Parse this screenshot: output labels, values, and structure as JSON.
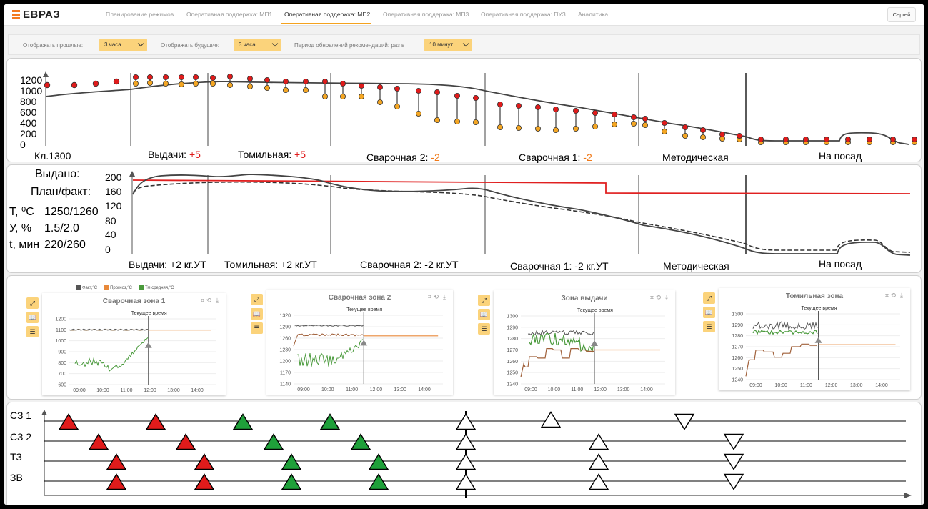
{
  "header": {
    "logo": "ЕВРАЗ",
    "tabs": [
      {
        "label": "Планирование режимов",
        "active": false
      },
      {
        "label": "Оперативная поддержка: МП1",
        "active": false
      },
      {
        "label": "Оперативная поддержка: МП2",
        "active": true
      },
      {
        "label": "Оперативная поддержка: МП3",
        "active": false
      },
      {
        "label": "Оперативная поддержка: ПУЗ",
        "active": false
      },
      {
        "label": "Аналитика",
        "active": false
      }
    ],
    "user": "Сергей"
  },
  "filters": {
    "past_label": "Отображать прошлые:",
    "past_value": "3 часа",
    "future_label": "Отображать будущие:",
    "future_value": "3 часа",
    "period_label": "Период обновлений рекомендаций: раз в",
    "period_value": "10 минут"
  },
  "colors": {
    "accent": "#f47b20",
    "select_bg": "#fbd37b",
    "red": "#e01b1b",
    "orange": "#f4a623",
    "green": "#1fa03a",
    "plan_red": "#e02020",
    "fact": "#555555",
    "forecast": "#e8893a",
    "avg": "#4a9a3c"
  },
  "zone_chart": {
    "y_ticks": [
      "1200",
      "1000",
      "800",
      "600",
      "400",
      "200",
      "0"
    ],
    "zones": [
      {
        "name": "Кл.1300",
        "delta": ""
      },
      {
        "name": "Выдачи:",
        "delta": "+5"
      },
      {
        "name": "Томильная:",
        "delta": "+5"
      },
      {
        "name": "Сварочная 2:",
        "delta": "-2"
      },
      {
        "name": "Сварочная 1:",
        "delta": "-2"
      },
      {
        "name": "Методическая",
        "delta": ""
      },
      {
        "name": "На посад",
        "delta": ""
      }
    ]
  },
  "production_chart": {
    "issued_label": "Выдано:",
    "plan_fact_label": "План/факт:",
    "info": [
      {
        "param": "T, ⁰C",
        "value": "1250/1260"
      },
      {
        "param": "У, %",
        "value": "1.5/2.0"
      },
      {
        "param": "t, мин",
        "value": "220/260"
      }
    ],
    "y_ticks": [
      "200",
      "160",
      "120",
      "80",
      "40",
      "0"
    ],
    "zones": [
      {
        "name": "Выдачи:",
        "delta": "+2 кг.УТ"
      },
      {
        "name": "Томильная:",
        "delta": "+2 кг.УТ"
      },
      {
        "name": "Сварочная 2:",
        "delta": "-2 кг.УТ"
      },
      {
        "name": "Сварочная 1:",
        "delta": "-2 кг.УТ"
      },
      {
        "name": "Методическая",
        "delta": ""
      },
      {
        "name": "На посад",
        "delta": ""
      }
    ]
  },
  "mini_legend": {
    "fact": "Факт,°C",
    "forecast": "Прогноз,°C",
    "avg": "Тм средняя,°C"
  },
  "mini_charts": [
    {
      "title": "Сварочная зона 1",
      "current": "Текущее время",
      "y_ticks": [
        "1200",
        "1100",
        "1000",
        "900",
        "800",
        "700",
        "600"
      ],
      "x_ticks": [
        "09:00",
        "10:00",
        "11:00",
        "12:00",
        "13:00",
        "14:00"
      ]
    },
    {
      "title": "Сварочная зона 2",
      "current": "Текущее время",
      "y_ticks": [
        "1320",
        "1290",
        "1260",
        "1230",
        "1200",
        "1170",
        "1140"
      ],
      "x_ticks": [
        "09:00",
        "10:00",
        "11:00",
        "12:00",
        "13:00",
        "14:00"
      ]
    },
    {
      "title": "Зона выдачи",
      "current": "Текущее время",
      "y_ticks": [
        "1300",
        "1290",
        "1280",
        "1270",
        "1260",
        "1250",
        "1240"
      ],
      "x_ticks": [
        "09:00",
        "10:00",
        "11:00",
        "12:00",
        "13:00",
        "14:00"
      ]
    },
    {
      "title": "Томильная зона",
      "current": "Текущее время",
      "y_ticks": [
        "1300",
        "1290",
        "1280",
        "1270",
        "1260",
        "1250",
        "1240"
      ],
      "x_ticks": [
        "09:00",
        "10:00",
        "11:00",
        "12:00",
        "13:00",
        "14:00"
      ]
    }
  ],
  "timeline": {
    "rows": [
      "СЗ 1",
      "СЗ 2",
      "ТЗ",
      "ЗВ"
    ]
  }
}
